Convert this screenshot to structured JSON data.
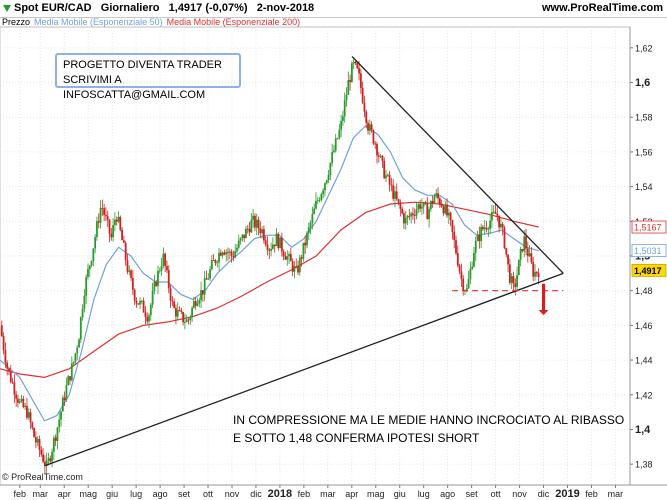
{
  "header": {
    "instrument": "Spot EUR/CAD",
    "timeframe": "Giornaliero",
    "last_change": "1,4917 (-0,07%)",
    "date": "2-nov-2018",
    "site": "www.ProRealTime.com"
  },
  "legend": {
    "price": "Prezzo",
    "ema50": "Media Mobile (Esponenziale 50)",
    "ema200": "Media Mobile (Esponenziale 200)"
  },
  "annotations": {
    "box_line1": "PROGETTO DIVENTA TRADER",
    "box_line2": "SCRIVIMI A INFOSCATTA@GMAIL.COM",
    "note_line1": "IN COMPRESSIONE MA LE MEDIE HANNO INCROCIATO AL RIBASSO",
    "note_line2": "E SOTTO 1,48 CONFERMA IPOTESI SHORT"
  },
  "watermark": "© ProRealTime.com",
  "colors": {
    "up_candle": "#2a9a2a",
    "down_candle": "#d02020",
    "ema50": "#6fa0e0",
    "ema200": "#e03030",
    "last_price_badge": "#ffd700",
    "trendline": "#222222",
    "support_dash": "#e03030"
  },
  "chart_data": {
    "type": "line",
    "title": "Spot EUR/CAD Giornaliero",
    "y_axis": {
      "ticks": [
        {
          "label": "1,62",
          "value": 1.62
        },
        {
          "label": "1,6",
          "value": 1.6,
          "bold": true
        },
        {
          "label": "1,58",
          "value": 1.58
        },
        {
          "label": "1,56",
          "value": 1.56
        },
        {
          "label": "1,54",
          "value": 1.54
        },
        {
          "label": "1,52",
          "value": 1.52
        },
        {
          "label": "1,5",
          "value": 1.5,
          "bold": true
        },
        {
          "label": "1,48",
          "value": 1.48
        },
        {
          "label": "1,46",
          "value": 1.46
        },
        {
          "label": "1,44",
          "value": 1.44
        },
        {
          "label": "1,42",
          "value": 1.42
        },
        {
          "label": "1,4",
          "value": 1.4,
          "bold": true
        },
        {
          "label": "1,38",
          "value": 1.38
        }
      ],
      "ylim": [
        1.368,
        1.632
      ]
    },
    "x_axis": {
      "ticks": [
        {
          "label": "feb",
          "t": 0.0
        },
        {
          "label": "mar",
          "t": 0.83
        },
        {
          "label": "apr",
          "t": 1.8
        },
        {
          "label": "mag",
          "t": 2.77
        },
        {
          "label": "giu",
          "t": 3.74
        },
        {
          "label": "lug",
          "t": 4.71
        },
        {
          "label": "ago",
          "t": 5.68
        },
        {
          "label": "set",
          "t": 6.65
        },
        {
          "label": "ott",
          "t": 7.62
        },
        {
          "label": "nov",
          "t": 8.59
        },
        {
          "label": "dic",
          "t": 9.56
        },
        {
          "label": "2018",
          "t": 10.53,
          "bold": true
        },
        {
          "label": "feb",
          "t": 11.5
        },
        {
          "label": "mar",
          "t": 12.47
        },
        {
          "label": "apr",
          "t": 13.44
        },
        {
          "label": "mag",
          "t": 14.41
        },
        {
          "label": "giu",
          "t": 15.38
        },
        {
          "label": "lug",
          "t": 16.35
        },
        {
          "label": "ago",
          "t": 17.32
        },
        {
          "label": "set",
          "t": 18.29
        },
        {
          "label": "ott",
          "t": 19.26
        },
        {
          "label": "nov",
          "t": 20.23
        },
        {
          "label": "dic",
          "t": 21.2
        },
        {
          "label": "2019",
          "t": 22.17,
          "bold": true
        },
        {
          "label": "feb",
          "t": 23.14
        },
        {
          "label": "mar",
          "t": 24.11
        }
      ],
      "xlim": [
        -0.8,
        24.7
      ]
    },
    "price_badges": [
      {
        "label": "1,5167",
        "value": 1.5167,
        "style": "ema200"
      },
      {
        "label": "1,5031",
        "value": 1.5031,
        "style": "ema50"
      },
      {
        "label": "1,4917",
        "value": 1.4917,
        "style": "last"
      }
    ],
    "series": [
      {
        "name": "Prezzo",
        "kind": "close",
        "points": [
          [
            -0.8,
            1.46
          ],
          [
            -0.5,
            1.435
          ],
          [
            0.0,
            1.415
          ],
          [
            0.3,
            1.41
          ],
          [
            0.6,
            1.395
          ],
          [
            0.9,
            1.385
          ],
          [
            1.1,
            1.378
          ],
          [
            1.5,
            1.4
          ],
          [
            1.9,
            1.425
          ],
          [
            2.2,
            1.44
          ],
          [
            2.4,
            1.455
          ],
          [
            2.6,
            1.48
          ],
          [
            2.9,
            1.5
          ],
          [
            3.1,
            1.515
          ],
          [
            3.3,
            1.53
          ],
          [
            3.5,
            1.52
          ],
          [
            3.7,
            1.51
          ],
          [
            3.9,
            1.525
          ],
          [
            4.2,
            1.505
          ],
          [
            4.4,
            1.49
          ],
          [
            4.7,
            1.475
          ],
          [
            5.0,
            1.47
          ],
          [
            5.2,
            1.465
          ],
          [
            5.5,
            1.485
          ],
          [
            5.8,
            1.5
          ],
          [
            6.0,
            1.485
          ],
          [
            6.2,
            1.47
          ],
          [
            6.5,
            1.465
          ],
          [
            6.8,
            1.462
          ],
          [
            7.1,
            1.475
          ],
          [
            7.4,
            1.48
          ],
          [
            7.8,
            1.495
          ],
          [
            8.2,
            1.505
          ],
          [
            8.6,
            1.5
          ],
          [
            9.0,
            1.51
          ],
          [
            9.4,
            1.52
          ],
          [
            9.8,
            1.515
          ],
          [
            10.1,
            1.505
          ],
          [
            10.4,
            1.51
          ],
          [
            10.8,
            1.5
          ],
          [
            11.2,
            1.49
          ],
          [
            11.6,
            1.51
          ],
          [
            12.0,
            1.53
          ],
          [
            12.4,
            1.545
          ],
          [
            12.7,
            1.56
          ],
          [
            13.0,
            1.575
          ],
          [
            13.3,
            1.6
          ],
          [
            13.5,
            1.61
          ],
          [
            13.7,
            1.605
          ],
          [
            13.9,
            1.59
          ],
          [
            14.1,
            1.575
          ],
          [
            14.4,
            1.565
          ],
          [
            14.7,
            1.55
          ],
          [
            15.0,
            1.54
          ],
          [
            15.3,
            1.53
          ],
          [
            15.6,
            1.52
          ],
          [
            15.9,
            1.525
          ],
          [
            16.2,
            1.53
          ],
          [
            16.5,
            1.525
          ],
          [
            16.8,
            1.535
          ],
          [
            17.1,
            1.53
          ],
          [
            17.4,
            1.52
          ],
          [
            17.7,
            1.5
          ],
          [
            17.9,
            1.485
          ],
          [
            18.1,
            1.48
          ],
          [
            18.4,
            1.505
          ],
          [
            18.7,
            1.515
          ],
          [
            19.0,
            1.52
          ],
          [
            19.3,
            1.525
          ],
          [
            19.6,
            1.51
          ],
          [
            19.8,
            1.49
          ],
          [
            20.0,
            1.48
          ],
          [
            20.2,
            1.495
          ],
          [
            20.4,
            1.51
          ],
          [
            20.6,
            1.5
          ],
          [
            20.8,
            1.49
          ],
          [
            21.0,
            1.4917
          ]
        ]
      },
      {
        "name": "Media Mobile (Esponenziale 50)",
        "kind": "ema50",
        "points": [
          [
            -0.8,
            1.44
          ],
          [
            0.0,
            1.43
          ],
          [
            0.6,
            1.415
          ],
          [
            1.0,
            1.405
          ],
          [
            1.5,
            1.408
          ],
          [
            2.0,
            1.42
          ],
          [
            2.5,
            1.445
          ],
          [
            3.0,
            1.475
          ],
          [
            3.5,
            1.495
          ],
          [
            4.0,
            1.505
          ],
          [
            4.5,
            1.5
          ],
          [
            5.0,
            1.49
          ],
          [
            5.5,
            1.485
          ],
          [
            6.0,
            1.485
          ],
          [
            6.5,
            1.478
          ],
          [
            7.0,
            1.475
          ],
          [
            7.5,
            1.48
          ],
          [
            8.0,
            1.49
          ],
          [
            8.5,
            1.497
          ],
          [
            9.0,
            1.503
          ],
          [
            9.5,
            1.51
          ],
          [
            10.0,
            1.512
          ],
          [
            10.5,
            1.512
          ],
          [
            11.0,
            1.505
          ],
          [
            11.5,
            1.51
          ],
          [
            12.0,
            1.52
          ],
          [
            12.5,
            1.535
          ],
          [
            13.0,
            1.55
          ],
          [
            13.5,
            1.568
          ],
          [
            14.0,
            1.575
          ],
          [
            14.5,
            1.57
          ],
          [
            15.0,
            1.56
          ],
          [
            15.5,
            1.545
          ],
          [
            16.0,
            1.538
          ],
          [
            16.5,
            1.535
          ],
          [
            17.0,
            1.535
          ],
          [
            17.5,
            1.53
          ],
          [
            18.0,
            1.518
          ],
          [
            18.5,
            1.512
          ],
          [
            19.0,
            1.513
          ],
          [
            19.5,
            1.515
          ],
          [
            20.0,
            1.51
          ],
          [
            20.5,
            1.505
          ],
          [
            21.0,
            1.5031
          ]
        ]
      },
      {
        "name": "Media Mobile (Esponenziale 200)",
        "kind": "ema200",
        "points": [
          [
            -0.8,
            1.435
          ],
          [
            0.0,
            1.432
          ],
          [
            1.0,
            1.43
          ],
          [
            2.0,
            1.435
          ],
          [
            3.0,
            1.445
          ],
          [
            4.0,
            1.455
          ],
          [
            5.0,
            1.46
          ],
          [
            6.0,
            1.462
          ],
          [
            7.0,
            1.465
          ],
          [
            8.0,
            1.47
          ],
          [
            9.0,
            1.477
          ],
          [
            10.0,
            1.485
          ],
          [
            11.0,
            1.492
          ],
          [
            12.0,
            1.5
          ],
          [
            13.0,
            1.515
          ],
          [
            14.0,
            1.525
          ],
          [
            15.0,
            1.53
          ],
          [
            16.0,
            1.531
          ],
          [
            17.0,
            1.53
          ],
          [
            18.0,
            1.527
          ],
          [
            19.0,
            1.524
          ],
          [
            20.0,
            1.52
          ],
          [
            21.0,
            1.5167
          ]
        ]
      }
    ],
    "trendlines": [
      {
        "name": "resistenza",
        "from": [
          13.45,
          1.615
        ],
        "to": [
          22.0,
          1.49
        ]
      },
      {
        "name": "supporto",
        "from": [
          1.0,
          1.379
        ],
        "to": [
          22.0,
          1.49
        ]
      }
    ],
    "support_level": {
      "value": 1.48,
      "from_t": 17.5,
      "to_t": 22.0
    },
    "target_arrow": {
      "t": 21.2,
      "from": 1.484,
      "to": 1.466
    }
  }
}
